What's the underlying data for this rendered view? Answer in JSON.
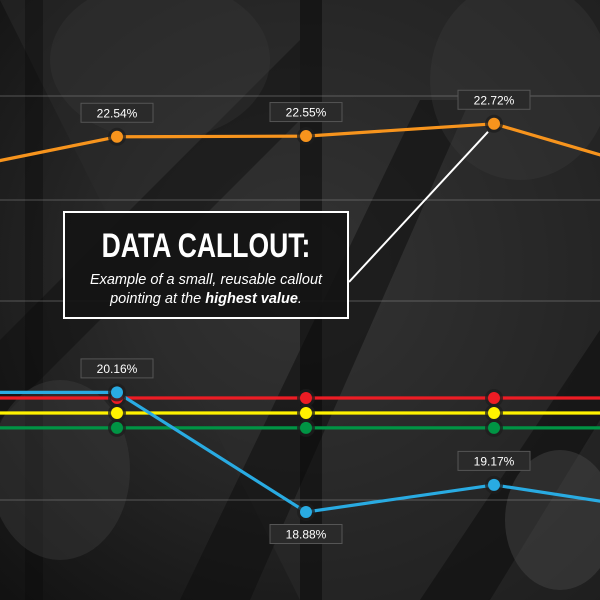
{
  "chart_data": {
    "type": "line",
    "title": "",
    "xlabel": "",
    "ylabel": "",
    "ylim": [
      18.0,
      23.5
    ],
    "grid": true,
    "x": [
      0,
      1,
      2,
      3,
      4
    ],
    "series": [
      {
        "key": "orange",
        "color": "#f7941d",
        "values": [
          22.0,
          22.54,
          22.55,
          22.72,
          22.25
        ],
        "labeled": [
          false,
          true,
          true,
          true,
          false
        ],
        "labels": [
          "",
          "22.54%",
          "22.55%",
          "22.72%",
          ""
        ]
      },
      {
        "key": "blue",
        "color": "#29abe2",
        "values": [
          20.16,
          20.16,
          18.88,
          19.17,
          18.98
        ],
        "labeled": [
          false,
          true,
          true,
          true,
          false
        ],
        "labels": [
          "",
          "20.16%",
          "18.88%",
          "19.17%",
          ""
        ]
      },
      {
        "key": "red",
        "color": "#ed1c24",
        "values": [
          20.1,
          20.1,
          20.1,
          20.1,
          20.1
        ],
        "labeled": [
          false,
          true,
          true,
          true,
          false
        ],
        "labels": [
          "",
          "",
          "",
          "",
          ""
        ]
      },
      {
        "key": "yellow",
        "color": "#fff200",
        "values": [
          19.94,
          19.94,
          19.94,
          19.94,
          19.94
        ],
        "labeled": [
          false,
          true,
          true,
          true,
          false
        ],
        "labels": [
          "",
          "",
          "",
          "",
          ""
        ]
      },
      {
        "key": "green",
        "color": "#009444",
        "values": [
          19.78,
          19.78,
          19.78,
          19.78,
          19.78
        ],
        "labeled": [
          false,
          true,
          true,
          true,
          false
        ],
        "labels": [
          "",
          "",
          "",
          "",
          ""
        ]
      }
    ]
  },
  "callout": {
    "title": "DATA CALLOUT:",
    "text_before": "Example of a small, reusable callout pointing at the ",
    "text_bold": "highest value",
    "text_after": "."
  }
}
